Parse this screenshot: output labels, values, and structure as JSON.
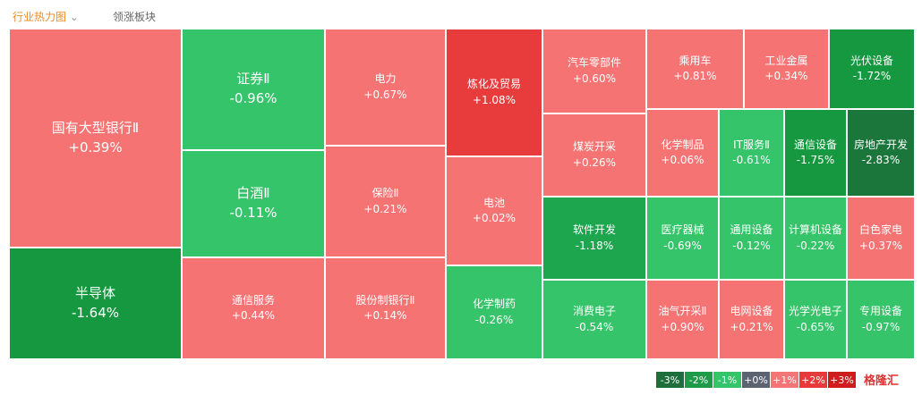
{
  "tabs": [
    {
      "label": "行业热力图",
      "color": "#f08a24"
    },
    {
      "label": "领涨板块",
      "color": "#666666"
    }
  ],
  "tiles": [
    {
      "name": "国有大型银行Ⅱ",
      "change": "+0.39%",
      "color": "#f57373"
    },
    {
      "name": "半导体",
      "change": "-1.64%",
      "color": "#15983f"
    },
    {
      "name": "证券Ⅱ",
      "change": "-0.96%",
      "color": "#35c46a"
    },
    {
      "name": "白酒Ⅱ",
      "change": "-0.11%",
      "color": "#35c46a"
    },
    {
      "name": "通信服务",
      "change": "+0.44%",
      "color": "#f57373"
    },
    {
      "name": "电力",
      "change": "+0.67%",
      "color": "#f57373"
    },
    {
      "name": "保险Ⅱ",
      "change": "+0.21%",
      "color": "#f57373"
    },
    {
      "name": "股份制银行Ⅱ",
      "change": "+0.14%",
      "color": "#f57373"
    },
    {
      "name": "炼化及贸易",
      "change": "+1.08%",
      "color": "#e83c3c"
    },
    {
      "name": "电池",
      "change": "+0.02%",
      "color": "#f57373"
    },
    {
      "name": "化学制药",
      "change": "-0.26%",
      "color": "#35c46a"
    },
    {
      "name": "汽车零部件",
      "change": "+0.60%",
      "color": "#f57373"
    },
    {
      "name": "乘用车",
      "change": "+0.81%",
      "color": "#f57373"
    },
    {
      "name": "工业金属",
      "change": "+0.34%",
      "color": "#f57373"
    },
    {
      "name": "光伏设备",
      "change": "-1.72%",
      "color": "#15983f"
    },
    {
      "name": "煤炭开采",
      "change": "+0.26%",
      "color": "#f57373"
    },
    {
      "name": "软件开发",
      "change": "-1.18%",
      "color": "#1ea64f"
    },
    {
      "name": "消费电子",
      "change": "-0.54%",
      "color": "#35c46a"
    },
    {
      "name": "化学制品",
      "change": "+0.06%",
      "color": "#f57373"
    },
    {
      "name": "医疗器械",
      "change": "-0.69%",
      "color": "#35c46a"
    },
    {
      "name": "油气开采Ⅱ",
      "change": "+0.90%",
      "color": "#f57373"
    },
    {
      "name": "IT服务Ⅱ",
      "change": "-0.61%",
      "color": "#35c46a"
    },
    {
      "name": "通用设备",
      "change": "-0.12%",
      "color": "#35c46a"
    },
    {
      "name": "电网设备",
      "change": "+0.21%",
      "color": "#f57373"
    },
    {
      "name": "通信设备",
      "change": "-1.75%",
      "color": "#15983f"
    },
    {
      "name": "计算机设备",
      "change": "-0.22%",
      "color": "#35c46a"
    },
    {
      "name": "光学光电子",
      "change": "-0.65%",
      "color": "#35c46a"
    },
    {
      "name": "房地产开发",
      "change": "-2.83%",
      "color": "#1b763b"
    },
    {
      "name": "白色家电",
      "change": "+0.37%",
      "color": "#f57373"
    },
    {
      "name": "专用设备",
      "change": "-0.97%",
      "color": "#35c46a"
    }
  ],
  "legend": [
    {
      "label": "-3%",
      "color": "#1c6e3a"
    },
    {
      "label": "-2%",
      "color": "#1f9a48"
    },
    {
      "label": "-1%",
      "color": "#35c46a"
    },
    {
      "label": "+0%",
      "color": "#5b6270"
    },
    {
      "label": "+1%",
      "color": "#f47575"
    },
    {
      "label": "+2%",
      "color": "#e83a3a"
    },
    {
      "label": "+3%",
      "color": "#cf1c1c"
    }
  ],
  "watermark": "格隆汇"
}
